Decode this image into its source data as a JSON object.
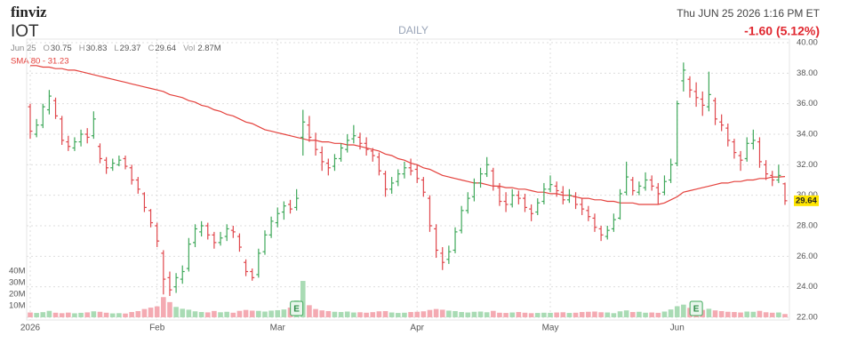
{
  "header": {
    "logo": "finviz",
    "ticker": "IOT",
    "interval": "DAILY",
    "datetime": "Thu JUN 25 2026 1:16 PM ET",
    "change": "-1.60 (5.12%)",
    "date": "Jun 25",
    "quote": [
      {
        "label": "O",
        "value": 30.75
      },
      {
        "label": "H",
        "value": 30.83
      },
      {
        "label": "L",
        "value": 29.37
      },
      {
        "label": "C",
        "value": 29.64
      },
      {
        "label": "Vol",
        "value": "2.87M"
      }
    ]
  },
  "chart_data": {
    "type": "ohlc",
    "up_color": "#3fa85a",
    "down_color": "#e0474c",
    "grid": true,
    "ylim": [
      22,
      40
    ],
    "yticks": [
      {
        "value": 22,
        "label": "22.00"
      },
      {
        "value": 24,
        "label": "24.00"
      },
      {
        "value": 26,
        "label": "26.00"
      },
      {
        "value": 28,
        "label": "28.00"
      },
      {
        "value": 30,
        "label": "30.00"
      },
      {
        "value": 32,
        "label": "32.00"
      },
      {
        "value": 34,
        "label": "34.00"
      },
      {
        "value": 36,
        "label": "36.00"
      },
      {
        "value": 38,
        "label": "38.00"
      },
      {
        "value": 40,
        "label": "40.00"
      }
    ],
    "xlim": [
      0,
      119
    ],
    "xticks": [
      {
        "value": 0,
        "label": "2026"
      },
      {
        "value": 20,
        "label": "Feb"
      },
      {
        "value": 39,
        "label": "Mar"
      },
      {
        "value": 61,
        "label": "Apr"
      },
      {
        "value": 82,
        "label": "May"
      },
      {
        "value": 102,
        "label": "Jun"
      }
    ],
    "ohlc": [
      [
        35.8,
        36.0,
        33.7,
        34.2
      ],
      [
        34.0,
        35.0,
        33.8,
        34.6
      ],
      [
        34.6,
        36.0,
        34.4,
        35.8
      ],
      [
        35.6,
        36.9,
        35.3,
        36.5
      ],
      [
        36.2,
        36.4,
        35.0,
        35.2
      ],
      [
        35.0,
        35.2,
        33.3,
        33.6
      ],
      [
        33.5,
        33.9,
        32.9,
        33.2
      ],
      [
        33.1,
        33.8,
        32.9,
        33.5
      ],
      [
        33.5,
        34.3,
        33.2,
        34.0
      ],
      [
        34.0,
        34.4,
        33.4,
        33.8
      ],
      [
        33.9,
        35.5,
        33.7,
        35.0
      ],
      [
        33.2,
        33.4,
        32.1,
        32.4
      ],
      [
        32.3,
        32.5,
        31.4,
        31.8
      ],
      [
        31.8,
        32.4,
        31.6,
        32.1
      ],
      [
        32.0,
        32.6,
        31.9,
        32.3
      ],
      [
        32.4,
        32.6,
        31.7,
        31.9
      ],
      [
        31.8,
        32.0,
        30.7,
        31.0
      ],
      [
        31.0,
        31.2,
        30.1,
        30.4
      ],
      [
        30.1,
        30.2,
        28.9,
        29.2
      ],
      [
        29.0,
        29.1,
        27.9,
        28.2
      ],
      [
        28.0,
        28.2,
        26.6,
        27.0
      ],
      [
        26.2,
        26.4,
        23.5,
        24.5
      ],
      [
        24.6,
        25.0,
        23.4,
        23.8
      ],
      [
        24.0,
        24.9,
        23.6,
        24.6
      ],
      [
        24.5,
        25.4,
        24.2,
        25.0
      ],
      [
        25.2,
        27.2,
        25.0,
        26.8
      ],
      [
        26.9,
        28.1,
        26.6,
        27.8
      ],
      [
        27.6,
        28.3,
        27.3,
        28.0
      ],
      [
        28.0,
        28.2,
        27.1,
        27.4
      ],
      [
        27.4,
        27.6,
        26.5,
        26.9
      ],
      [
        26.9,
        27.6,
        26.7,
        27.2
      ],
      [
        27.3,
        28.1,
        27.0,
        27.8
      ],
      [
        27.7,
        28.0,
        27.2,
        27.6
      ],
      [
        27.3,
        27.5,
        26.3,
        26.6
      ],
      [
        25.6,
        25.8,
        24.7,
        25.0
      ],
      [
        25.0,
        25.2,
        24.4,
        24.6
      ],
      [
        24.8,
        26.5,
        24.6,
        26.2
      ],
      [
        26.3,
        27.7,
        26.1,
        27.4
      ],
      [
        27.4,
        28.6,
        27.2,
        28.3
      ],
      [
        28.2,
        29.2,
        27.9,
        28.8
      ],
      [
        28.9,
        29.6,
        28.4,
        29.3
      ],
      [
        29.4,
        29.7,
        28.8,
        29.1
      ],
      [
        29.2,
        30.4,
        29.0,
        29.8
      ],
      [
        33.8,
        35.6,
        32.6,
        34.8
      ],
      [
        34.6,
        35.2,
        33.5,
        33.8
      ],
      [
        33.6,
        34.1,
        32.6,
        33.0
      ],
      [
        32.8,
        33.2,
        31.6,
        32.2
      ],
      [
        32.1,
        32.4,
        31.3,
        31.8
      ],
      [
        31.9,
        32.7,
        31.6,
        32.4
      ],
      [
        32.4,
        33.4,
        32.2,
        33.1
      ],
      [
        33.0,
        34.0,
        32.8,
        33.6
      ],
      [
        33.7,
        34.6,
        33.4,
        33.9
      ],
      [
        33.8,
        34.1,
        33.0,
        33.4
      ],
      [
        33.4,
        33.8,
        32.6,
        33.0
      ],
      [
        32.9,
        33.1,
        32.2,
        32.6
      ],
      [
        32.5,
        32.8,
        31.3,
        31.6
      ],
      [
        31.4,
        31.6,
        29.9,
        30.4
      ],
      [
        30.4,
        31.2,
        30.1,
        30.8
      ],
      [
        30.9,
        31.7,
        30.6,
        31.4
      ],
      [
        31.4,
        32.2,
        31.1,
        31.8
      ],
      [
        31.8,
        32.4,
        31.3,
        31.6
      ],
      [
        31.7,
        32.0,
        30.8,
        31.1
      ],
      [
        31.0,
        31.2,
        29.9,
        30.2
      ],
      [
        29.8,
        30.0,
        27.6,
        28.0
      ],
      [
        27.8,
        28.1,
        25.9,
        26.4
      ],
      [
        26.2,
        26.6,
        25.1,
        25.6
      ],
      [
        25.8,
        26.7,
        25.5,
        26.3
      ],
      [
        26.4,
        27.9,
        26.2,
        27.6
      ],
      [
        27.7,
        29.3,
        27.5,
        29.0
      ],
      [
        29.0,
        30.2,
        28.8,
        29.8
      ],
      [
        29.9,
        31.1,
        29.6,
        30.8
      ],
      [
        30.8,
        31.8,
        30.5,
        31.4
      ],
      [
        31.4,
        32.5,
        31.2,
        32.0
      ],
      [
        31.6,
        31.8,
        30.3,
        30.6
      ],
      [
        30.5,
        30.8,
        29.3,
        29.6
      ],
      [
        29.6,
        30.2,
        28.9,
        29.4
      ],
      [
        29.4,
        30.4,
        29.2,
        30.0
      ],
      [
        30.0,
        30.3,
        29.4,
        29.8
      ],
      [
        29.8,
        30.1,
        28.9,
        29.2
      ],
      [
        29.1,
        29.4,
        28.3,
        28.8
      ],
      [
        28.9,
        29.8,
        28.7,
        29.5
      ],
      [
        29.6,
        30.8,
        29.4,
        30.4
      ],
      [
        30.4,
        31.3,
        30.2,
        30.7
      ],
      [
        30.6,
        30.9,
        29.9,
        30.3
      ],
      [
        30.2,
        30.6,
        29.4,
        29.7
      ],
      [
        29.7,
        30.4,
        29.5,
        30.0
      ],
      [
        29.9,
        30.2,
        29.1,
        29.4
      ],
      [
        29.4,
        29.8,
        28.7,
        29.1
      ],
      [
        29.0,
        29.3,
        28.3,
        28.6
      ],
      [
        28.5,
        28.8,
        27.6,
        27.9
      ],
      [
        27.8,
        28.0,
        27.0,
        27.4
      ],
      [
        27.3,
        28.0,
        27.1,
        27.7
      ],
      [
        27.8,
        28.8,
        27.6,
        28.4
      ],
      [
        28.5,
        30.4,
        28.4,
        30.1
      ],
      [
        30.2,
        32.2,
        30.0,
        31.2
      ],
      [
        31.0,
        31.2,
        30.0,
        30.3
      ],
      [
        30.2,
        30.9,
        30.0,
        30.6
      ],
      [
        30.5,
        31.5,
        30.3,
        31.0
      ],
      [
        31.0,
        31.3,
        30.3,
        30.6
      ],
      [
        30.5,
        30.8,
        29.4,
        30.1
      ],
      [
        30.2,
        31.3,
        30.0,
        30.9
      ],
      [
        31.0,
        32.4,
        30.8,
        32.0
      ],
      [
        32.1,
        36.2,
        31.9,
        36.0
      ],
      [
        37.5,
        38.7,
        36.8,
        38.2
      ],
      [
        37.6,
        37.8,
        36.4,
        36.9
      ],
      [
        36.8,
        37.4,
        35.8,
        36.4
      ],
      [
        36.3,
        36.8,
        35.2,
        35.9
      ],
      [
        35.8,
        38.1,
        35.5,
        36.6
      ],
      [
        36.2,
        36.4,
        34.6,
        35.0
      ],
      [
        34.8,
        35.3,
        34.2,
        34.6
      ],
      [
        34.4,
        34.7,
        33.2,
        33.6
      ],
      [
        33.5,
        33.7,
        32.4,
        32.8
      ],
      [
        32.6,
        32.9,
        31.6,
        32.3
      ],
      [
        32.4,
        33.8,
        32.2,
        33.4
      ],
      [
        33.4,
        34.3,
        33.0,
        33.6
      ],
      [
        33.5,
        33.8,
        31.8,
        32.2
      ],
      [
        32.0,
        32.3,
        31.0,
        31.4
      ],
      [
        31.3,
        31.6,
        30.6,
        31.0
      ],
      [
        31.0,
        32.0,
        30.8,
        31.3
      ],
      [
        30.75,
        30.83,
        29.37,
        29.64
      ]
    ],
    "volume": {
      "up_color": "#a9dbb4",
      "down_color": "#f4aab2",
      "ylim": [
        0,
        40
      ],
      "yticks": [
        {
          "value": 10,
          "label": "10M"
        },
        {
          "value": 20,
          "label": "20M"
        },
        {
          "value": 30,
          "label": "30M"
        },
        {
          "value": 40,
          "label": "40M"
        }
      ],
      "values": [
        4.2,
        3.8,
        4.5,
        5.6,
        4.0,
        3.6,
        4.1,
        3.5,
        3.9,
        4.3,
        5.2,
        4.8,
        4.0,
        3.4,
        3.6,
        3.3,
        4.6,
        5.4,
        7.2,
        8.4,
        9.5,
        17.5,
        13.2,
        9.0,
        7.4,
        6.6,
        5.2,
        4.6,
        4.3,
        5.5,
        4.4,
        4.8,
        4.0,
        5.6,
        6.4,
        5.8,
        5.6,
        5.0,
        5.8,
        6.2,
        6.8,
        8.4,
        14.6,
        31.5,
        10.5,
        7.2,
        6.0,
        5.4,
        4.8,
        4.6,
        5.0,
        4.2,
        4.4,
        4.0,
        4.5,
        5.2,
        5.4,
        4.2,
        3.8,
        4.0,
        4.6,
        4.8,
        5.2,
        6.4,
        7.2,
        6.6,
        5.8,
        5.4,
        4.6,
        4.2,
        4.8,
        5.0,
        4.4,
        5.6,
        4.0,
        3.8,
        4.2,
        4.6,
        4.0,
        3.6,
        3.8,
        4.0,
        3.9,
        4.2,
        4.4,
        3.8,
        4.0,
        4.6,
        4.8,
        5.0,
        4.4,
        4.2,
        3.6,
        5.2,
        6.0,
        4.6,
        4.8,
        4.0,
        4.2,
        3.9,
        5.0,
        6.8,
        9.6,
        11.0,
        8.2,
        6.8,
        6.4,
        7.4,
        6.0,
        5.4,
        4.8,
        4.6,
        4.2,
        5.0,
        4.8,
        5.6,
        4.4,
        4.0,
        4.2,
        2.87
      ]
    },
    "sma": {
      "name": "SMA 80 - 31.23",
      "color": "#e4413c",
      "values": [
        38.5,
        38.5,
        38.4,
        38.4,
        38.3,
        38.3,
        38.2,
        38.2,
        38.1,
        38.0,
        37.9,
        37.8,
        37.7,
        37.6,
        37.5,
        37.4,
        37.3,
        37.2,
        37.1,
        37.0,
        36.9,
        36.8,
        36.6,
        36.5,
        36.4,
        36.2,
        36.1,
        35.9,
        35.8,
        35.6,
        35.5,
        35.3,
        35.2,
        35.0,
        34.8,
        34.7,
        34.5,
        34.3,
        34.2,
        34.1,
        34.0,
        33.9,
        33.8,
        33.7,
        33.6,
        33.6,
        33.5,
        33.5,
        33.4,
        33.4,
        33.3,
        33.3,
        33.2,
        33.1,
        33.0,
        32.9,
        32.7,
        32.6,
        32.4,
        32.3,
        32.1,
        32.0,
        31.8,
        31.7,
        31.5,
        31.3,
        31.2,
        31.1,
        31.0,
        30.9,
        30.8,
        30.8,
        30.7,
        30.6,
        30.6,
        30.5,
        30.5,
        30.4,
        30.4,
        30.3,
        30.2,
        30.2,
        30.1,
        30.1,
        30.0,
        30.0,
        29.9,
        29.8,
        29.8,
        29.7,
        29.7,
        29.6,
        29.6,
        29.5,
        29.5,
        29.5,
        29.4,
        29.4,
        29.4,
        29.4,
        29.5,
        29.7,
        29.9,
        30.2,
        30.3,
        30.4,
        30.5,
        30.6,
        30.7,
        30.8,
        30.8,
        30.9,
        30.9,
        31.0,
        31.0,
        31.1,
        31.1,
        31.2,
        31.2,
        31.23
      ]
    },
    "earnings": [
      {
        "index": 42,
        "label": "E"
      },
      {
        "index": 105,
        "label": "E"
      }
    ]
  }
}
